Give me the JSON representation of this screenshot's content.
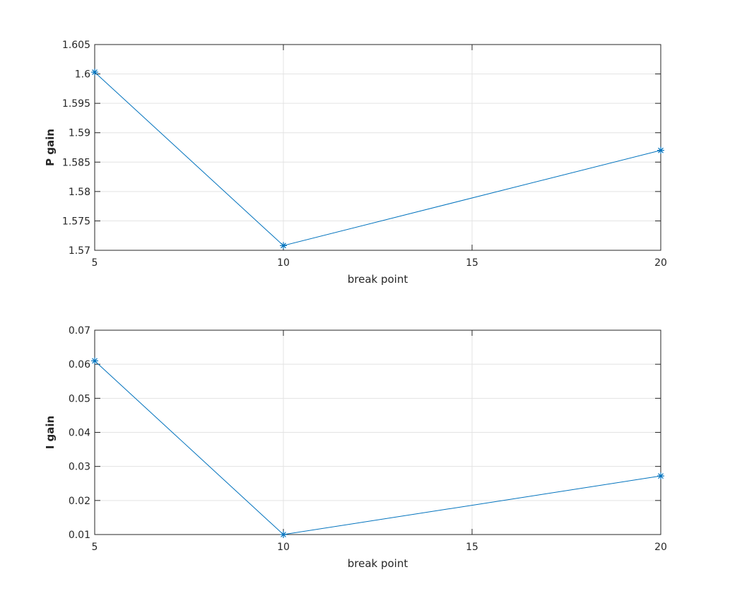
{
  "chart_data": [
    {
      "type": "line",
      "xlabel": "break point",
      "ylabel": "P gain",
      "x": [
        5,
        10,
        20
      ],
      "series": [
        {
          "values": [
            1.6003,
            1.5708,
            1.587
          ],
          "marker": "asterisk",
          "color": "#0072BD"
        }
      ],
      "xlim": [
        5,
        20
      ],
      "ylim": [
        1.57,
        1.605
      ],
      "xticks": [
        5,
        10,
        15,
        20
      ],
      "xtick_labels": [
        "5",
        "10",
        "15",
        "20"
      ],
      "yticks": [
        1.57,
        1.575,
        1.58,
        1.585,
        1.59,
        1.595,
        1.6,
        1.605
      ],
      "ytick_labels": [
        "1.57",
        "1.575",
        "1.58",
        "1.585",
        "1.59",
        "1.595",
        "1.6",
        "1.605"
      ],
      "grid": true
    },
    {
      "type": "line",
      "xlabel": "break point",
      "ylabel": "I gain",
      "x": [
        5,
        10,
        20
      ],
      "series": [
        {
          "values": [
            0.061,
            0.01,
            0.0272
          ],
          "marker": "asterisk",
          "color": "#0072BD"
        }
      ],
      "xlim": [
        5,
        20
      ],
      "ylim": [
        0.01,
        0.07
      ],
      "xticks": [
        5,
        10,
        15,
        20
      ],
      "xtick_labels": [
        "5",
        "10",
        "15",
        "20"
      ],
      "yticks": [
        0.01,
        0.02,
        0.03,
        0.04,
        0.05,
        0.06,
        0.07
      ],
      "ytick_labels": [
        "0.01",
        "0.02",
        "0.03",
        "0.04",
        "0.05",
        "0.06",
        "0.07"
      ],
      "grid": true
    }
  ]
}
